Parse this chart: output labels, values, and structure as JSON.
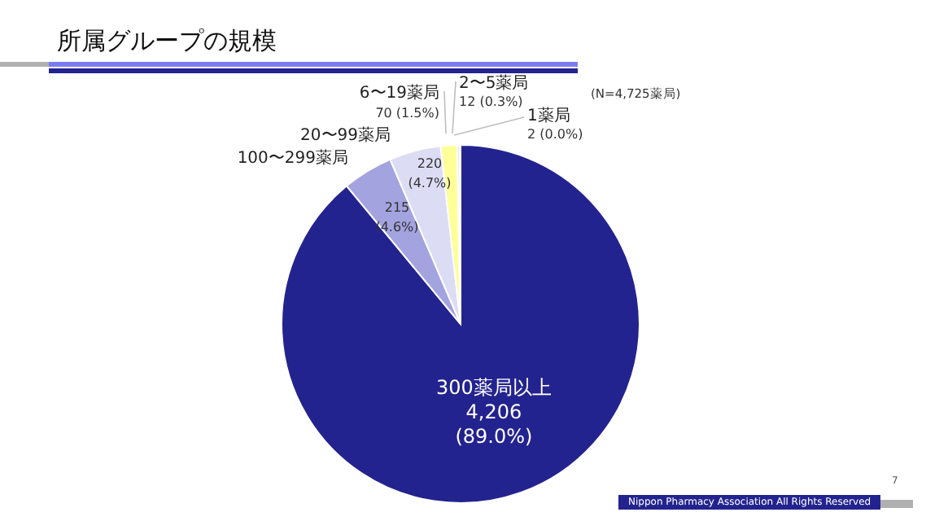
{
  "chart_data": {
    "type": "pie",
    "title": "所属グループの規模",
    "categories": [
      "300薬局以上",
      "100〜299薬局",
      "20〜99薬局",
      "6〜19薬局",
      "2〜5薬局",
      "1薬局"
    ],
    "values": [
      4206,
      215,
      220,
      70,
      12,
      2
    ],
    "colors": [
      "#23238f",
      "#a3a3e0",
      "#dcdcf5",
      "#ffff99",
      "#e6e6e6",
      "#ffffff"
    ],
    "value_labels": [
      "4,206 (89.0%)",
      "215 (4.6%)",
      "220 (4.7%)",
      "70 (1.5%)",
      "12 (0.3%)",
      "2 (0.0%)"
    ],
    "annotations": [
      "(N=4,725薬局)",
      "Nippon Pharmacy Association All Rights Reserved",
      "7"
    ],
    "legend": false
  }
}
